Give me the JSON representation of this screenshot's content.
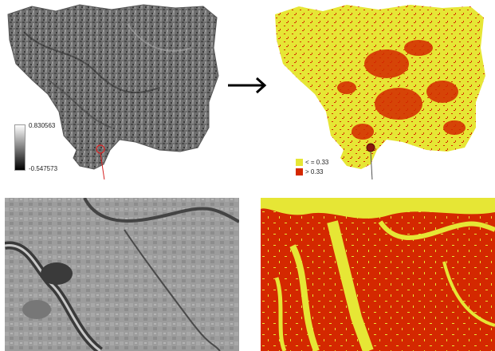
{
  "legends": {
    "grayscale": {
      "max_label": "0.830563",
      "min_label": "-0.547573"
    },
    "classification": {
      "items": [
        {
          "label": "< = 0.33",
          "color": "#e6e635"
        },
        {
          "label": "> 0.33",
          "color": "#d42800"
        }
      ]
    }
  },
  "colors": {
    "low_class": "#e6e635",
    "high_class": "#d42800",
    "arrow": "#000000",
    "leader_red": "#d62020",
    "leader_gray": "#555555"
  }
}
